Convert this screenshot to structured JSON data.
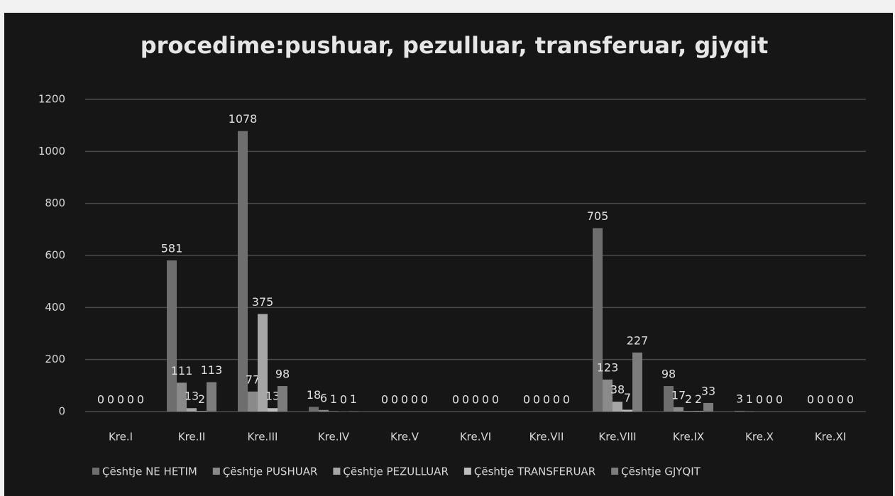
{
  "chart_data": {
    "type": "bar",
    "title": "procedime:pushuar, pezulluar, transferuar, gjyqit",
    "categories": [
      "Kre.I",
      "Kre.II",
      "Kre.III",
      "Kre.IV",
      "Kre.V",
      "Kre.VI",
      "Kre.VII",
      "Kre.VIII",
      "Kre.IX",
      "Kre.X",
      "Kre.XI"
    ],
    "series": [
      {
        "name": "Çështje NE HETIM",
        "color": "#6e6e6e",
        "values": [
          0,
          581,
          1078,
          18,
          0,
          0,
          0,
          705,
          98,
          3,
          0
        ]
      },
      {
        "name": "Çështje PUSHUAR",
        "color": "#8a8a8a",
        "values": [
          0,
          111,
          77,
          6,
          0,
          0,
          0,
          123,
          17,
          1,
          0
        ]
      },
      {
        "name": "Çështje PEZULLUAR",
        "color": "#a6a6a6",
        "values": [
          0,
          13,
          375,
          1,
          0,
          0,
          0,
          38,
          2,
          0,
          0
        ]
      },
      {
        "name": "Çështje TRANSFERUAR",
        "color": "#bdbdbd",
        "values": [
          0,
          2,
          13,
          0,
          0,
          0,
          0,
          7,
          2,
          0,
          0
        ]
      },
      {
        "name": "Çështje GJYQIT",
        "color": "#7c7c7c",
        "values": [
          0,
          113,
          98,
          1,
          0,
          0,
          0,
          227,
          33,
          0,
          0
        ]
      }
    ],
    "ylim": [
      0,
      1200
    ],
    "yticks": [
      0,
      200,
      400,
      600,
      800,
      1000,
      1200
    ],
    "grid": true,
    "legend": "bottom"
  }
}
